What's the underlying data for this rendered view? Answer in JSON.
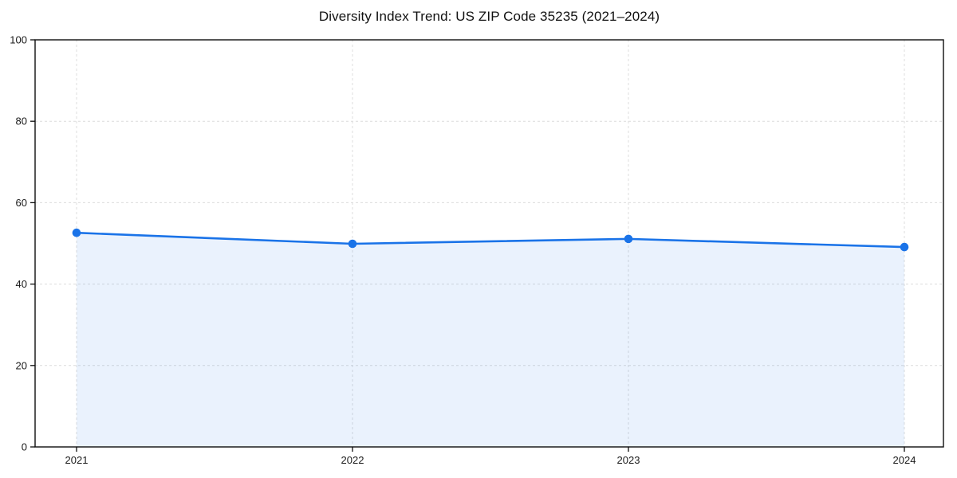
{
  "chart_data": {
    "type": "line",
    "title": "Diversity Index Trend: US ZIP Code 35235 (2021–2024)",
    "x": [
      2021,
      2022,
      2023,
      2024
    ],
    "series": [
      {
        "name": "Diversity Index",
        "values": [
          52.6,
          49.9,
          51.1,
          49.1
        ]
      }
    ],
    "xlabel": "",
    "ylabel": "",
    "ylim": [
      0,
      100
    ],
    "yticks": [
      0,
      20,
      40,
      60,
      80,
      100
    ],
    "grid": true,
    "grid_style": "dashed",
    "legend_position": "none",
    "colors": {
      "line": "#1a73e8",
      "marker": "#1a73e8",
      "area_fill": "rgba(26,115,232,0.09)",
      "grid": "#dcdcdc",
      "spine": "#0d0d0d",
      "tick_text": "#1a1a1a",
      "background": "#ffffff"
    }
  }
}
